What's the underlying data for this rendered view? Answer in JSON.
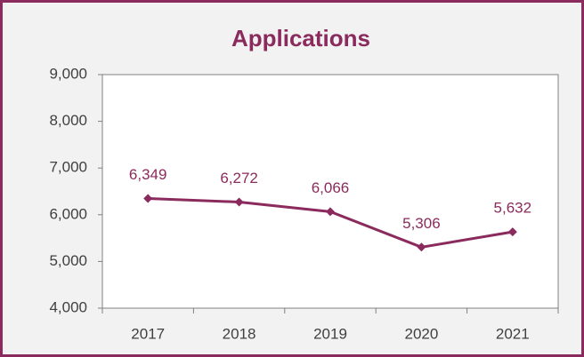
{
  "chart_data": {
    "type": "line",
    "title": "Applications",
    "categories": [
      "2017",
      "2018",
      "2019",
      "2020",
      "2021"
    ],
    "values": [
      6349,
      6272,
      6066,
      5306,
      5632
    ],
    "value_labels": [
      "6,349",
      "6,272",
      "6,066",
      "5,306",
      "5,632"
    ],
    "color": "#8b2a5c",
    "ylim": [
      4000,
      9000
    ],
    "yticks": [
      {
        "value": 4000,
        "label": "4,000"
      },
      {
        "value": 5000,
        "label": "5,000"
      },
      {
        "value": 6000,
        "label": "6,000"
      },
      {
        "value": 7000,
        "label": "7,000"
      },
      {
        "value": 8000,
        "label": "8,000"
      },
      {
        "value": 9000,
        "label": "9,000"
      }
    ],
    "grid": false
  }
}
